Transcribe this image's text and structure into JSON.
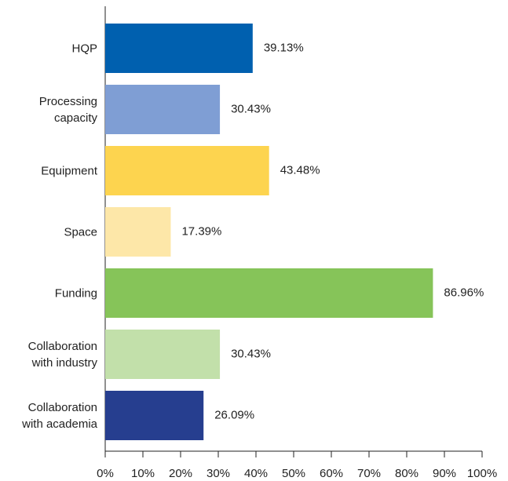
{
  "chart_data": {
    "type": "bar",
    "orientation": "horizontal",
    "categories": [
      "HQP",
      "Processing\ncapacity",
      "Equipment",
      "Space",
      "Funding",
      "Collaboration\nwith industry",
      "Collaboration\nwith academia"
    ],
    "values": [
      39.13,
      30.43,
      43.48,
      17.39,
      86.96,
      30.43,
      26.09
    ],
    "value_labels": [
      "39.13%",
      "30.43%",
      "43.48%",
      "17.39%",
      "86.96%",
      "30.43%",
      "26.09%"
    ],
    "colors": [
      "#0060af",
      "#7f9ed4",
      "#fdd44f",
      "#fde7a8",
      "#86c459",
      "#c2e0aa",
      "#263e8f"
    ],
    "xlim": [
      0,
      100
    ],
    "xticks": [
      {
        "value": 0,
        "label": "0%"
      },
      {
        "value": 10,
        "label": "10%"
      },
      {
        "value": 20,
        "label": "20%"
      },
      {
        "value": 30,
        "label": "30%"
      },
      {
        "value": 40,
        "label": "40%"
      },
      {
        "value": 50,
        "label": "50%"
      },
      {
        "value": 60,
        "label": "60%"
      },
      {
        "value": 70,
        "label": "70%"
      },
      {
        "value": 80,
        "label": "80%"
      },
      {
        "value": 90,
        "label": "90%"
      },
      {
        "value": 100,
        "label": "100%"
      }
    ],
    "grid": false
  }
}
